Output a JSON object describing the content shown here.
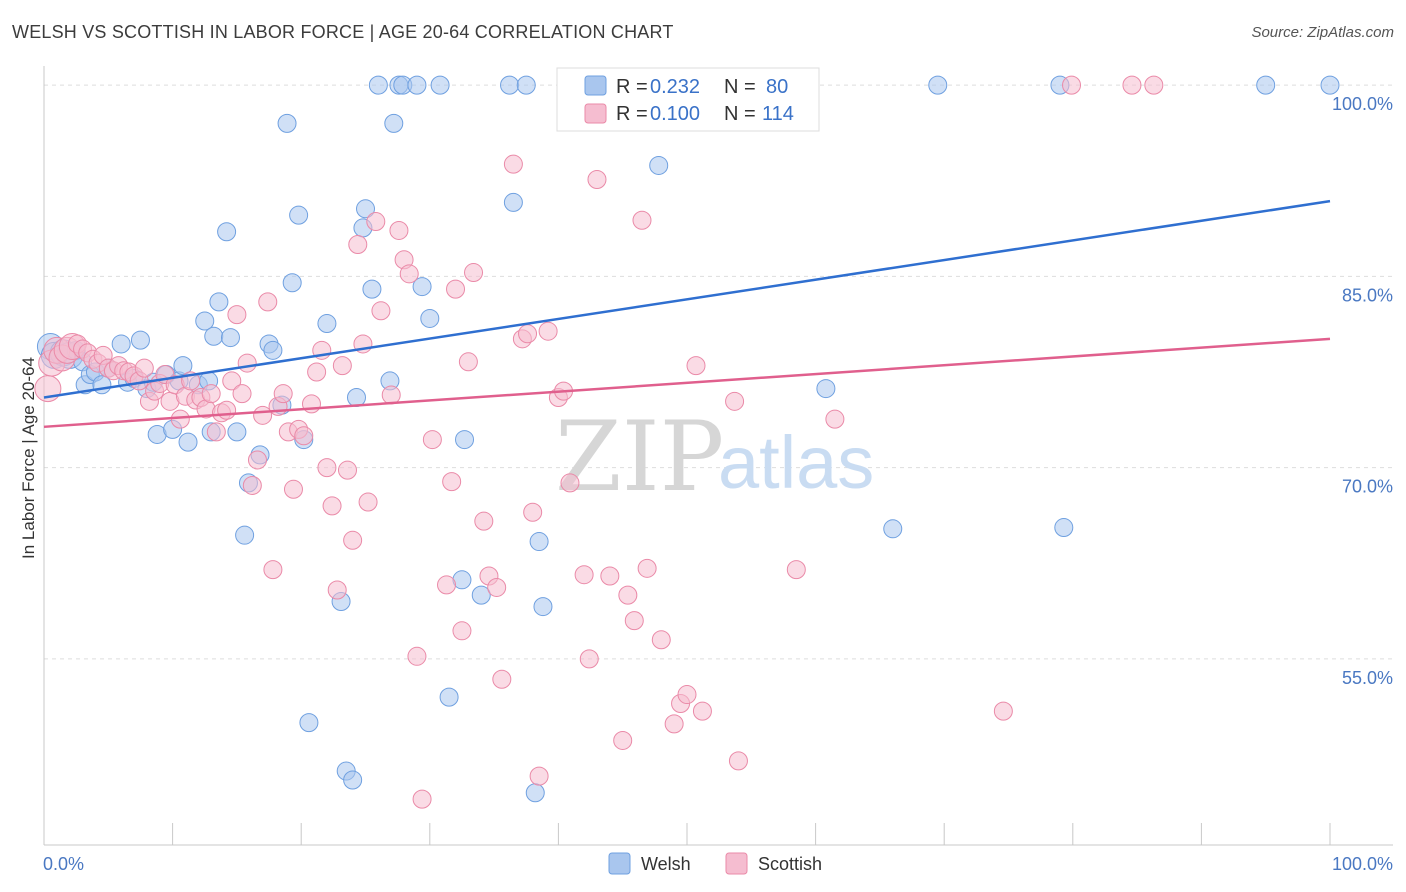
{
  "title": "WELSH VS SCOTTISH IN LABOR FORCE | AGE 20-64 CORRELATION CHART",
  "source": "Source: ZipAtlas.com",
  "watermark": {
    "part1": "ZIP",
    "part2": "atlas"
  },
  "stats_box": {
    "rows": [
      {
        "r_label": "R =",
        "r_value": "0.232",
        "n_label": "N =",
        "n_value": "80"
      },
      {
        "r_label": "R =",
        "r_value": "0.100",
        "n_label": "N =",
        "n_value": "114"
      }
    ]
  },
  "legend": [
    {
      "name": "Welsh"
    },
    {
      "name": "Scottish"
    }
  ],
  "chart_data": {
    "type": "scatter",
    "title": "WELSH VS SCOTTISH IN LABOR FORCE | AGE 20-64 CORRELATION CHART",
    "xlabel": "",
    "ylabel": "In Labor Force | Age 20-64",
    "xlim": [
      0,
      100
    ],
    "ylim": [
      40.4,
      101.5
    ],
    "x_tick_labels": [
      "0.0%",
      "100.0%"
    ],
    "y_ticks": [
      55,
      70,
      85,
      100
    ],
    "y_tick_labels": [
      "55.0%",
      "70.0%",
      "85.0%",
      "100.0%"
    ],
    "grid": true,
    "legend_position": "bottom-center",
    "series": [
      {
        "name": "Welsh",
        "color": "#6fa0e0",
        "fill": "#a9c6ee",
        "R": 0.232,
        "N": 80,
        "trend": {
          "x": [
            0,
            100
          ],
          "y": [
            75.5,
            90.9
          ],
          "color": "#2f6fd0"
        },
        "points": [
          [
            0.5,
            79.5
          ],
          [
            0.8,
            78.8
          ],
          [
            1.5,
            79.0
          ],
          [
            2.0,
            78.8
          ],
          [
            2.5,
            79.2
          ],
          [
            3.0,
            78.3
          ],
          [
            3.2,
            76.5
          ],
          [
            3.6,
            77.3
          ],
          [
            4.0,
            77.5
          ],
          [
            4.5,
            76.5
          ],
          [
            5.0,
            77.8
          ],
          [
            6.0,
            79.7
          ],
          [
            6.5,
            76.7
          ],
          [
            7.0,
            77.0
          ],
          [
            7.5,
            80.0
          ],
          [
            8.0,
            76.2
          ],
          [
            8.5,
            76.7
          ],
          [
            8.8,
            72.6
          ],
          [
            9.5,
            77.3
          ],
          [
            10.0,
            73.0
          ],
          [
            10.5,
            76.8
          ],
          [
            10.8,
            78.0
          ],
          [
            11.2,
            72.0
          ],
          [
            12.0,
            76.5
          ],
          [
            12.5,
            81.5
          ],
          [
            12.8,
            76.8
          ],
          [
            13.0,
            72.8
          ],
          [
            13.2,
            80.3
          ],
          [
            13.6,
            83.0
          ],
          [
            14.2,
            88.5
          ],
          [
            14.5,
            80.2
          ],
          [
            15.0,
            72.8
          ],
          [
            15.6,
            64.7
          ],
          [
            15.9,
            68.8
          ],
          [
            16.8,
            71.0
          ],
          [
            17.5,
            79.7
          ],
          [
            17.8,
            79.2
          ],
          [
            18.5,
            74.9
          ],
          [
            18.9,
            97.0
          ],
          [
            19.3,
            84.5
          ],
          [
            19.8,
            89.8
          ],
          [
            20.2,
            72.2
          ],
          [
            20.6,
            50.0
          ],
          [
            22.0,
            81.3
          ],
          [
            23.1,
            59.5
          ],
          [
            23.5,
            46.2
          ],
          [
            24.0,
            45.5
          ],
          [
            24.3,
            75.5
          ],
          [
            24.8,
            88.8
          ],
          [
            25.0,
            90.3
          ],
          [
            25.5,
            84.0
          ],
          [
            26.0,
            100.0
          ],
          [
            26.9,
            76.8
          ],
          [
            27.2,
            97.0
          ],
          [
            27.6,
            100.0
          ],
          [
            27.9,
            100.0
          ],
          [
            29.0,
            100.0
          ],
          [
            29.4,
            84.2
          ],
          [
            30.0,
            81.7
          ],
          [
            30.8,
            100.0
          ],
          [
            31.5,
            52.0
          ],
          [
            32.5,
            61.2
          ],
          [
            32.7,
            72.2
          ],
          [
            34.0,
            60.0
          ],
          [
            36.2,
            100.0
          ],
          [
            36.5,
            90.8
          ],
          [
            37.5,
            100.0
          ],
          [
            38.2,
            44.5
          ],
          [
            38.5,
            64.2
          ],
          [
            38.8,
            59.1
          ],
          [
            41.2,
            100.0
          ],
          [
            44.2,
            100.0
          ],
          [
            47.8,
            93.7
          ],
          [
            60.8,
            76.2
          ],
          [
            66.0,
            65.2
          ],
          [
            69.5,
            100.0
          ],
          [
            79.0,
            100.0
          ],
          [
            79.3,
            65.3
          ],
          [
            95.0,
            100.0
          ],
          [
            100.0,
            100.0
          ]
        ]
      },
      {
        "name": "Scottish",
        "color": "#ea8aa8",
        "fill": "#f5bdd0",
        "R": 0.1,
        "N": 114,
        "trend": {
          "x": [
            0,
            100
          ],
          "y": [
            73.2,
            80.1
          ],
          "color": "#e05f8d"
        },
        "points": [
          [
            0.3,
            76.2
          ],
          [
            0.6,
            78.2
          ],
          [
            1.0,
            79.2
          ],
          [
            1.4,
            78.6
          ],
          [
            1.8,
            79.2
          ],
          [
            2.2,
            79.5
          ],
          [
            2.6,
            79.7
          ],
          [
            3.0,
            79.3
          ],
          [
            3.4,
            79.0
          ],
          [
            3.8,
            78.5
          ],
          [
            4.2,
            78.2
          ],
          [
            4.6,
            78.8
          ],
          [
            5.0,
            77.8
          ],
          [
            5.4,
            77.6
          ],
          [
            5.8,
            78.0
          ],
          [
            6.2,
            77.6
          ],
          [
            6.6,
            77.5
          ],
          [
            7.0,
            77.2
          ],
          [
            7.4,
            76.8
          ],
          [
            7.8,
            77.8
          ],
          [
            8.2,
            75.2
          ],
          [
            8.6,
            76.0
          ],
          [
            9.0,
            76.6
          ],
          [
            9.4,
            77.3
          ],
          [
            9.8,
            75.2
          ],
          [
            10.2,
            76.5
          ],
          [
            10.6,
            73.8
          ],
          [
            11.0,
            75.6
          ],
          [
            11.4,
            76.8
          ],
          [
            11.8,
            75.3
          ],
          [
            12.2,
            75.5
          ],
          [
            12.6,
            74.6
          ],
          [
            13.0,
            75.8
          ],
          [
            13.4,
            72.8
          ],
          [
            13.8,
            74.3
          ],
          [
            14.2,
            74.5
          ],
          [
            14.6,
            76.8
          ],
          [
            15.0,
            82.0
          ],
          [
            15.4,
            75.8
          ],
          [
            15.8,
            78.2
          ],
          [
            16.2,
            68.6
          ],
          [
            16.6,
            70.6
          ],
          [
            17.0,
            74.1
          ],
          [
            17.4,
            83.0
          ],
          [
            17.8,
            62.0
          ],
          [
            18.2,
            74.8
          ],
          [
            18.6,
            75.8
          ],
          [
            19.0,
            72.8
          ],
          [
            19.4,
            68.3
          ],
          [
            19.8,
            73.0
          ],
          [
            20.2,
            72.5
          ],
          [
            20.8,
            75.0
          ],
          [
            21.2,
            77.5
          ],
          [
            21.6,
            79.2
          ],
          [
            22.0,
            70.0
          ],
          [
            22.4,
            67.0
          ],
          [
            22.8,
            60.4
          ],
          [
            23.2,
            78.0
          ],
          [
            23.6,
            69.8
          ],
          [
            24.0,
            64.3
          ],
          [
            24.4,
            87.5
          ],
          [
            24.8,
            79.7
          ],
          [
            25.2,
            67.3
          ],
          [
            25.8,
            89.3
          ],
          [
            26.2,
            82.3
          ],
          [
            27.0,
            75.7
          ],
          [
            27.6,
            88.6
          ],
          [
            28.0,
            86.3
          ],
          [
            28.4,
            85.2
          ],
          [
            29.0,
            55.2
          ],
          [
            29.4,
            44.0
          ],
          [
            30.2,
            72.2
          ],
          [
            31.3,
            60.8
          ],
          [
            31.7,
            68.9
          ],
          [
            32.0,
            84.0
          ],
          [
            32.5,
            57.2
          ],
          [
            33.0,
            78.3
          ],
          [
            33.4,
            85.3
          ],
          [
            34.2,
            65.8
          ],
          [
            34.6,
            61.5
          ],
          [
            35.2,
            60.6
          ],
          [
            35.6,
            53.4
          ],
          [
            36.5,
            93.8
          ],
          [
            37.2,
            80.1
          ],
          [
            37.6,
            80.5
          ],
          [
            38.0,
            66.5
          ],
          [
            38.5,
            45.8
          ],
          [
            39.2,
            80.7
          ],
          [
            40.0,
            75.5
          ],
          [
            40.4,
            76.0
          ],
          [
            40.9,
            68.8
          ],
          [
            42.0,
            61.6
          ],
          [
            42.4,
            55.0
          ],
          [
            43.0,
            92.6
          ],
          [
            44.0,
            61.5
          ],
          [
            45.0,
            48.6
          ],
          [
            45.4,
            60.0
          ],
          [
            45.9,
            58.0
          ],
          [
            46.5,
            89.4
          ],
          [
            46.9,
            62.1
          ],
          [
            48.0,
            56.5
          ],
          [
            49.0,
            49.9
          ],
          [
            49.5,
            51.5
          ],
          [
            50.0,
            52.2
          ],
          [
            50.7,
            78.0
          ],
          [
            51.2,
            50.9
          ],
          [
            53.7,
            75.2
          ],
          [
            54.0,
            47.0
          ],
          [
            58.5,
            62.0
          ],
          [
            61.5,
            73.8
          ],
          [
            74.6,
            50.9
          ],
          [
            79.9,
            100.0
          ],
          [
            84.6,
            100.0
          ],
          [
            86.3,
            100.0
          ]
        ]
      }
    ]
  }
}
